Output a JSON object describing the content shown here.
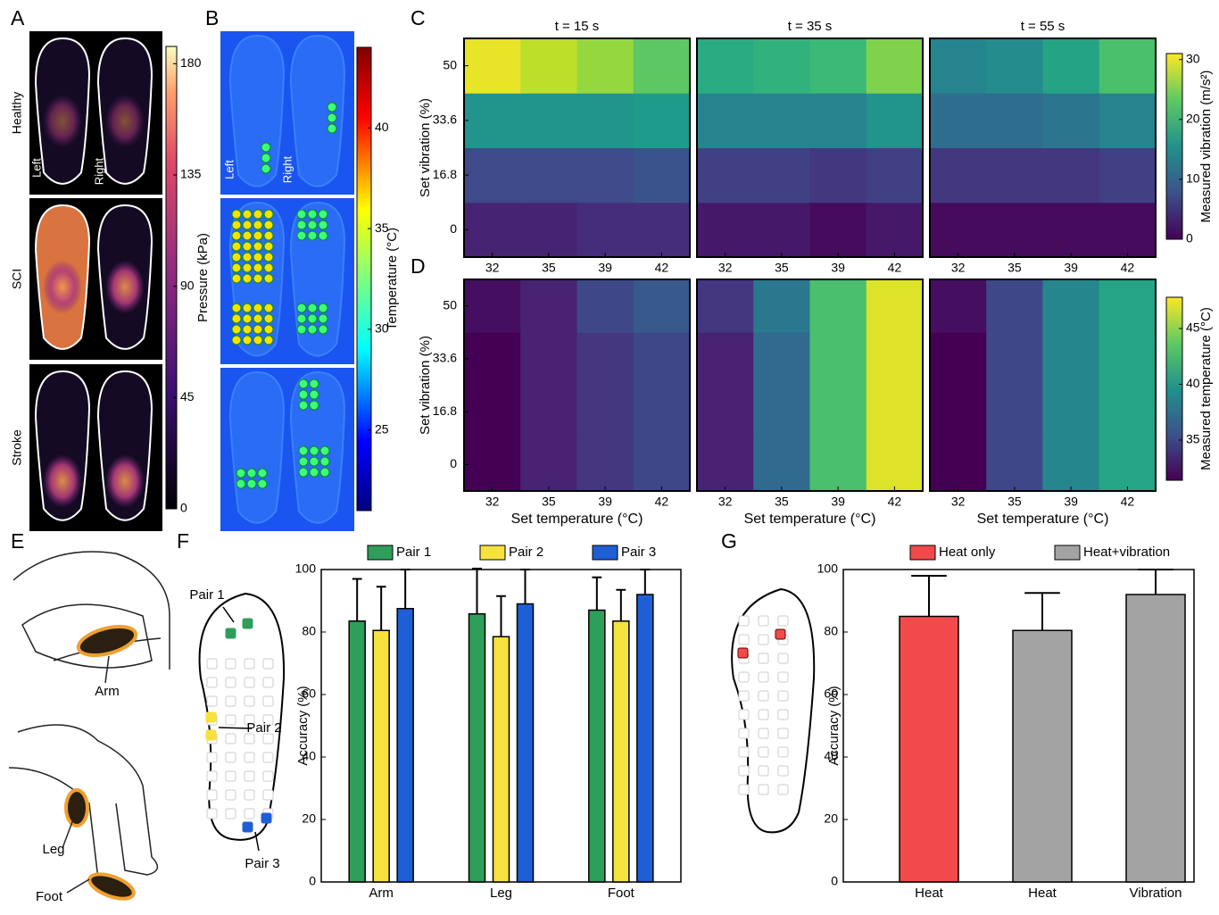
{
  "chart_data": [
    {
      "type": "image",
      "panel": "A",
      "row_labels": [
        "Healthy",
        "SCI",
        "Stroke"
      ],
      "side_labels": [
        "Left",
        "Right"
      ],
      "colorbar": {
        "label": "Pressure (kPa)",
        "lim": [
          0,
          187
        ],
        "ticks": [
          0,
          45,
          90,
          135,
          180
        ],
        "colormap": "magma"
      }
    },
    {
      "type": "image",
      "panel": "B",
      "side_labels": [
        "Left",
        "Right"
      ],
      "colorbar": {
        "label": "Temperature (°C)",
        "lim": [
          21,
          44
        ],
        "ticks": [
          25,
          30,
          35,
          40
        ],
        "colormap": "jet"
      }
    },
    {
      "type": "heatmap",
      "panel": "C",
      "titles": [
        "t = 15 s",
        "t = 35 s",
        "t = 55 s"
      ],
      "ylabel": "Set vibration (%)",
      "x": [
        32,
        35,
        39,
        42
      ],
      "y": [
        0,
        16.8,
        33.6,
        50
      ],
      "values": [
        [
          [
            3,
            3,
            4,
            4
          ],
          [
            7,
            7,
            7,
            8
          ],
          [
            16,
            16,
            16,
            17
          ],
          [
            30,
            28,
            26,
            23
          ]
        ],
        [
          [
            2,
            2,
            1,
            2
          ],
          [
            6,
            6,
            5,
            6
          ],
          [
            14,
            14,
            14,
            16
          ],
          [
            19,
            20,
            21,
            25
          ]
        ],
        [
          [
            1,
            1,
            1,
            1
          ],
          [
            5,
            5,
            5,
            6
          ],
          [
            11,
            11,
            12,
            14
          ],
          [
            14,
            15,
            18,
            22
          ]
        ]
      ],
      "colorbar": {
        "label": "Measured vibration (m/s²)",
        "lim": [
          0,
          31
        ],
        "ticks": [
          0,
          10,
          20,
          30
        ],
        "colormap": "viridis"
      }
    },
    {
      "type": "heatmap",
      "panel": "D",
      "xlabel": "Set temperature (°C)",
      "ylabel": "Set vibration (%)",
      "x": [
        32,
        35,
        39,
        42
      ],
      "y": [
        0,
        16.8,
        33.6,
        50
      ],
      "values": [
        [
          [
            31,
            33,
            34,
            35
          ],
          [
            31,
            33,
            34,
            35
          ],
          [
            31,
            33,
            34,
            35
          ],
          [
            32,
            33,
            35,
            36
          ]
        ],
        [
          [
            33,
            37,
            43,
            47
          ],
          [
            33,
            37,
            43,
            47
          ],
          [
            33,
            37,
            43,
            47
          ],
          [
            34,
            38,
            43,
            47
          ]
        ],
        [
          [
            31,
            35,
            39,
            41
          ],
          [
            31,
            35,
            39,
            41
          ],
          [
            31,
            35,
            39,
            41
          ],
          [
            32,
            35,
            39,
            41
          ]
        ]
      ],
      "colorbar": {
        "label": "Measured temperature (°C)",
        "lim": [
          31.4,
          47.8
        ],
        "ticks": [
          35,
          40,
          45
        ],
        "colormap": "viridis"
      }
    },
    {
      "type": "illustration",
      "panel": "E",
      "labels": [
        "Arm",
        "Leg",
        "Foot"
      ]
    },
    {
      "type": "bar",
      "panel": "F",
      "categories": [
        "Arm",
        "Leg",
        "Foot"
      ],
      "ylabel": "Accuracy (%)",
      "ylim": [
        0,
        100
      ],
      "yticks": [
        0,
        20,
        40,
        60,
        80,
        100
      ],
      "series": [
        {
          "name": "Pair 1",
          "color": "#2e9e5b",
          "values": [
            83.5,
            85.8,
            87
          ],
          "errors": [
            13.5,
            14.5,
            10.5
          ]
        },
        {
          "name": "Pair 2",
          "color": "#f5e23c",
          "values": [
            80.5,
            78.5,
            83.5
          ],
          "errors": [
            14,
            13,
            10
          ]
        },
        {
          "name": "Pair 3",
          "color": "#1f5fd6",
          "values": [
            87.5,
            89,
            92
          ],
          "errors": [
            12.5,
            11,
            8
          ]
        }
      ],
      "annotations": [
        "Pair 1",
        "Pair 2",
        "Pair 3"
      ]
    },
    {
      "type": "bar",
      "panel": "G",
      "categories": [
        "Heat",
        "Heat",
        "Vibration"
      ],
      "ylabel": "Accuracy (%)",
      "ylim": [
        0,
        100
      ],
      "yticks": [
        0,
        20,
        40,
        60,
        80,
        100
      ],
      "values": [
        85,
        80.5,
        92
      ],
      "errors": [
        13,
        12,
        8
      ],
      "colors": [
        "#f24a4a",
        "#a3a3a3",
        "#a3a3a3"
      ],
      "legend": [
        {
          "name": "Heat only",
          "color": "#f24a4a"
        },
        {
          "name": "Heat+vibration",
          "color": "#a3a3a3"
        }
      ]
    }
  ]
}
